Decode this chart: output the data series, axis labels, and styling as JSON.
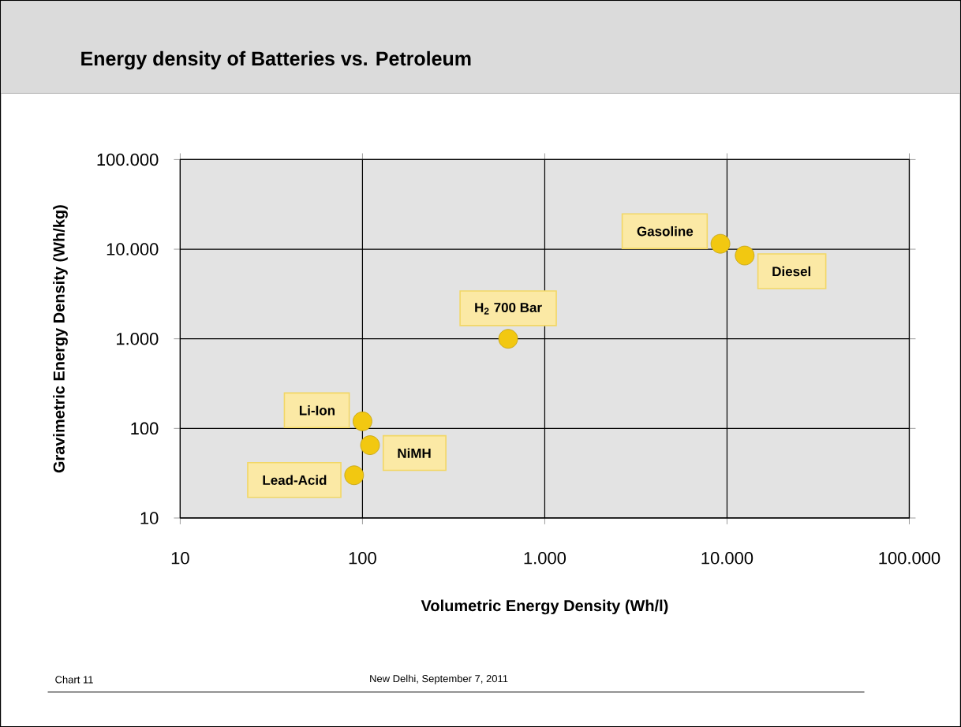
{
  "chart_data": {
    "type": "scatter",
    "title": "Energy density of Batteries vs. Petroleum",
    "xlabel": "Volumetric Energy Density (Wh/l)",
    "ylabel": "Gravimetric Energy Density (Wh/kg)",
    "x": [
      90,
      110,
      100,
      630,
      9200,
      12500
    ],
    "values": [
      30,
      65,
      120,
      1000,
      11500,
      8500
    ],
    "color": "#f2c811",
    "marker": "circle",
    "log": "xy",
    "grid": true,
    "xlim": [
      10,
      100000
    ],
    "ylim": [
      10,
      100000
    ],
    "xticks": [
      10,
      100,
      {
        "value": 1000,
        "label": "1.000"
      },
      {
        "value": 10000,
        "label": "10.000"
      },
      {
        "value": 100000,
        "label": "100.000"
      }
    ],
    "yticks": [
      10,
      100,
      {
        "value": 1000,
        "label": "1.000"
      },
      {
        "value": 10000,
        "label": "10.000"
      },
      {
        "value": 100000,
        "label": "100.000"
      }
    ],
    "annotations": [
      {
        "text": "Lead-Acid",
        "x": 90,
        "y": 30
      },
      {
        "text": "NiMH",
        "x": 110,
        "y": 65
      },
      {
        "text": "Li-Ion",
        "x": 100,
        "y": 120
      },
      {
        "text": "H$_{2}$ 700 Bar",
        "x": 630,
        "y": 1000
      },
      {
        "text": "Gasoline",
        "x": 9200,
        "y": 11500
      },
      {
        "text": "Diesel",
        "x": 12500,
        "y": 8500
      },
      "Chart 11",
      "New Delhi, September 7, 2011"
    ]
  }
}
